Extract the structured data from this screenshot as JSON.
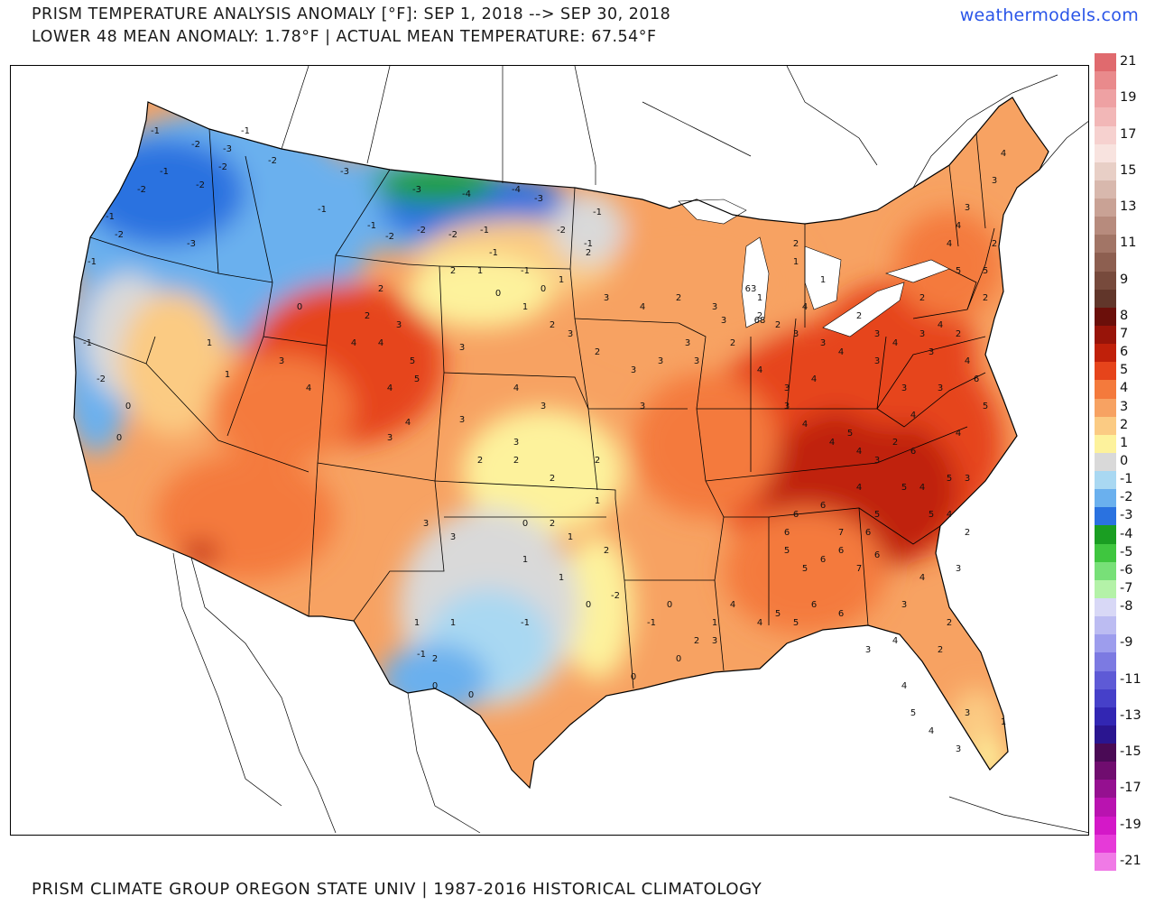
{
  "header": {
    "title_line1": "PRISM TEMPERATURE ANALYSIS ANOMALY [°F]: SEP 1, 2018 --> SEP 30, 2018",
    "title_line2": "LOWER 48 MEAN ANOMALY: 1.78°F | ACTUAL MEAN TEMPERATURE: 67.54°F",
    "brand": "weathermodels.com"
  },
  "footer": {
    "credit": "PRISM CLIMATE GROUP OREGON STATE UNIV | 1987-2016 HISTORICAL CLIMATOLOGY"
  },
  "legend": {
    "cells": [
      {
        "value": "21",
        "color": "#e06a6e"
      },
      {
        "value": "",
        "color": "#e98a8c"
      },
      {
        "value": "19",
        "color": "#eea1a3"
      },
      {
        "value": "",
        "color": "#f2b7b7"
      },
      {
        "value": "17",
        "color": "#f6d1cf"
      },
      {
        "value": "",
        "color": "#f8e3df"
      },
      {
        "value": "15",
        "color": "#e8cfc6"
      },
      {
        "value": "",
        "color": "#d8b8ad"
      },
      {
        "value": "13",
        "color": "#c9a295"
      },
      {
        "value": "",
        "color": "#b78b7d"
      },
      {
        "value": "11",
        "color": "#a27566"
      },
      {
        "value": "",
        "color": "#8d5f50"
      },
      {
        "value": "9",
        "color": "#774a3c"
      },
      {
        "value": "",
        "color": "#61362a"
      },
      {
        "value": "8",
        "color": "#6b0f0a"
      },
      {
        "value": "7",
        "color": "#981409"
      },
      {
        "value": "6",
        "color": "#c0200a"
      },
      {
        "value": "5",
        "color": "#e6441b"
      },
      {
        "value": "4",
        "color": "#f47a3c"
      },
      {
        "value": "3",
        "color": "#f7a262"
      },
      {
        "value": "2",
        "color": "#fbcb83"
      },
      {
        "value": "1",
        "color": "#fdf29c"
      },
      {
        "value": "0",
        "color": "#d9d9d9"
      },
      {
        "value": "-1",
        "color": "#a9d8f2"
      },
      {
        "value": "-2",
        "color": "#6ab0ee"
      },
      {
        "value": "-3",
        "color": "#2a72e0"
      },
      {
        "value": "-4",
        "color": "#1a9e22"
      },
      {
        "value": "-5",
        "color": "#3fc63f"
      },
      {
        "value": "-6",
        "color": "#78e078"
      },
      {
        "value": "-7",
        "color": "#b4f2a8"
      },
      {
        "value": "-8",
        "color": "#d8d8f6"
      },
      {
        "value": "",
        "color": "#bcbcf2"
      },
      {
        "value": "-9",
        "color": "#9d9ded"
      },
      {
        "value": "",
        "color": "#7c7ae2"
      },
      {
        "value": "-11",
        "color": "#5e5ad6"
      },
      {
        "value": "",
        "color": "#4640c9"
      },
      {
        "value": "-13",
        "color": "#3226b3"
      },
      {
        "value": "",
        "color": "#2a1590"
      },
      {
        "value": "-15",
        "color": "#4a0a55"
      },
      {
        "value": "",
        "color": "#700d6f"
      },
      {
        "value": "-17",
        "color": "#951090"
      },
      {
        "value": "",
        "color": "#b913b0"
      },
      {
        "value": "-19",
        "color": "#d418c8"
      },
      {
        "value": "",
        "color": "#e63ad8"
      },
      {
        "value": "-21",
        "color": "#f07ae6"
      }
    ]
  },
  "map": {
    "region": "Lower 48 United States",
    "anomaly_values": [
      {
        "v": "-1"
      },
      {
        "v": "-2"
      },
      {
        "v": "-3"
      },
      {
        "v": "-1"
      },
      {
        "v": "-2"
      },
      {
        "v": "-2"
      },
      {
        "v": "-2"
      },
      {
        "v": "-1"
      },
      {
        "v": "-2"
      },
      {
        "v": "-1"
      },
      {
        "v": "-3"
      },
      {
        "v": "-3"
      },
      {
        "v": "-3"
      },
      {
        "v": "-4"
      },
      {
        "v": "-4"
      },
      {
        "v": "-3"
      },
      {
        "v": "-2"
      },
      {
        "v": "-2"
      },
      {
        "v": "-1"
      },
      {
        "v": "-1"
      },
      {
        "v": "-1"
      },
      {
        "v": "-2"
      },
      {
        "v": "-1"
      },
      {
        "v": "-2"
      },
      {
        "v": "-1"
      },
      {
        "v": "-1"
      },
      {
        "v": "-2"
      },
      {
        "v": "-1"
      },
      {
        "v": "-1"
      },
      {
        "v": "-2"
      },
      {
        "v": "0"
      },
      {
        "v": "0"
      },
      {
        "v": "1"
      },
      {
        "v": "1"
      },
      {
        "v": "3"
      },
      {
        "v": "0"
      },
      {
        "v": "2"
      },
      {
        "v": "3"
      },
      {
        "v": "4"
      },
      {
        "v": "4"
      },
      {
        "v": "5"
      },
      {
        "v": "4"
      },
      {
        "v": "4"
      },
      {
        "v": "5"
      },
      {
        "v": "3"
      },
      {
        "v": "4"
      },
      {
        "v": "3"
      },
      {
        "v": "4"
      },
      {
        "v": "2"
      },
      {
        "v": "3"
      },
      {
        "v": "2"
      },
      {
        "v": "3"
      },
      {
        "v": "2"
      },
      {
        "v": "2"
      },
      {
        "v": "3"
      },
      {
        "v": "2"
      },
      {
        "v": "3"
      },
      {
        "v": "3"
      },
      {
        "v": "0"
      },
      {
        "v": "2"
      },
      {
        "v": "1"
      },
      {
        "v": "1"
      },
      {
        "v": "1"
      },
      {
        "v": "2"
      },
      {
        "v": "1"
      },
      {
        "v": "1"
      },
      {
        "v": "2"
      },
      {
        "v": "1"
      },
      {
        "v": "0"
      },
      {
        "v": "0"
      },
      {
        "v": "-1"
      },
      {
        "v": "-1"
      },
      {
        "v": "0"
      },
      {
        "v": "-2"
      },
      {
        "v": "0"
      },
      {
        "v": "-1"
      },
      {
        "v": "0"
      },
      {
        "v": "0"
      },
      {
        "v": "2"
      },
      {
        "v": "1"
      },
      {
        "v": "3"
      },
      {
        "v": "3"
      },
      {
        "v": "3"
      },
      {
        "v": "3"
      },
      {
        "v": "3"
      },
      {
        "v": "2"
      },
      {
        "v": "3"
      },
      {
        "v": "4"
      },
      {
        "v": "3"
      },
      {
        "v": "4"
      },
      {
        "v": "4"
      },
      {
        "v": "4"
      },
      {
        "v": "5"
      },
      {
        "v": "4"
      },
      {
        "v": "4"
      },
      {
        "v": "3"
      },
      {
        "v": "2"
      },
      {
        "v": "3"
      },
      {
        "v": "4"
      },
      {
        "v": "3"
      },
      {
        "v": "4"
      },
      {
        "v": "5"
      },
      {
        "v": "4"
      },
      {
        "v": "5"
      },
      {
        "v": "6"
      },
      {
        "v": "5"
      },
      {
        "v": "5"
      },
      {
        "v": "6"
      },
      {
        "v": "7"
      },
      {
        "v": "6"
      },
      {
        "v": "6"
      },
      {
        "v": "6"
      },
      {
        "v": "5"
      },
      {
        "v": "5"
      },
      {
        "v": "6"
      },
      {
        "v": "6"
      },
      {
        "v": "7"
      },
      {
        "v": "6"
      },
      {
        "v": "6"
      },
      {
        "v": "6"
      },
      {
        "v": "5"
      },
      {
        "v": "5"
      },
      {
        "v": "4"
      },
      {
        "v": "4"
      },
      {
        "v": "3"
      },
      {
        "v": "3"
      },
      {
        "v": "4"
      },
      {
        "v": "4"
      },
      {
        "v": "5"
      },
      {
        "v": "4"
      },
      {
        "v": "3"
      },
      {
        "v": "3"
      },
      {
        "v": "2"
      },
      {
        "v": "2"
      },
      {
        "v": "3"
      },
      {
        "v": "3"
      },
      {
        "v": "4"
      },
      {
        "v": "4"
      },
      {
        "v": "3"
      },
      {
        "v": "2"
      },
      {
        "v": "1"
      },
      {
        "v": "2"
      },
      {
        "v": "2"
      },
      {
        "v": "3"
      },
      {
        "v": "4"
      },
      {
        "v": "5"
      },
      {
        "v": "5"
      },
      {
        "v": "4"
      },
      {
        "v": "3"
      },
      {
        "v": "4"
      },
      {
        "v": "4"
      },
      {
        "v": "3"
      },
      {
        "v": "3"
      },
      {
        "v": "2"
      },
      {
        "v": "1"
      },
      {
        "v": "1"
      },
      {
        "v": "2"
      },
      {
        "v": "1"
      },
      {
        "v": "2"
      },
      {
        "v": "3"
      },
      {
        "v": "2"
      },
      {
        "v": "4"
      },
      {
        "v": "3"
      },
      {
        "v": "3"
      },
      {
        "v": "4"
      },
      {
        "v": "3"
      },
      {
        "v": "2"
      },
      {
        "v": "4"
      },
      {
        "v": "6"
      },
      {
        "v": "5"
      },
      {
        "v": "3"
      },
      {
        "v": "4"
      },
      {
        "v": "2"
      },
      {
        "v": "3"
      },
      {
        "v": "2"
      },
      {
        "v": "4"
      },
      {
        "v": "3"
      },
      {
        "v": "2"
      },
      {
        "v": "1"
      },
      {
        "v": "0"
      },
      {
        "v": "-1"
      },
      {
        "v": "1"
      },
      {
        "v": "2"
      },
      {
        "v": "0"
      },
      {
        "v": "1"
      },
      {
        "v": "2"
      },
      {
        "v": "3"
      },
      {
        "v": "2"
      },
      {
        "v": "63"
      },
      {
        "v": "68"
      }
    ]
  }
}
